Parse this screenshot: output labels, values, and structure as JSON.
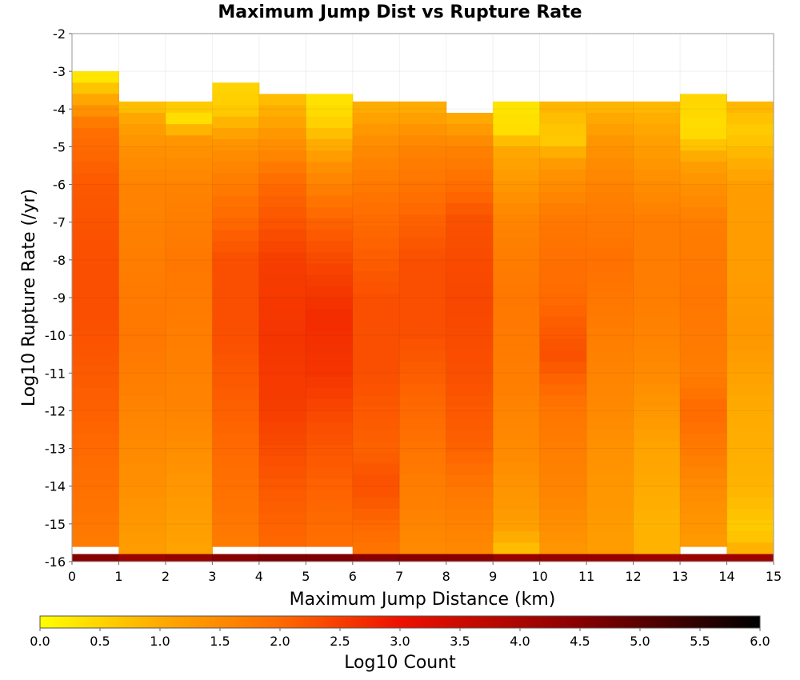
{
  "chart_data": {
    "type": "heatmap",
    "title": "Maximum Jump Dist vs Rupture Rate",
    "xlabel": "Maximum Jump Distance (km)",
    "ylabel": "Log10 Rupture Rate (/yr)",
    "xlim": [
      0,
      15
    ],
    "ylim": [
      -16,
      -2
    ],
    "x_ticks": [
      "0",
      "1",
      "2",
      "3",
      "4",
      "5",
      "6",
      "7",
      "8",
      "9",
      "10",
      "11",
      "12",
      "13",
      "14",
      "15"
    ],
    "y_ticks": [
      "-2",
      "-3",
      "-4",
      "-5",
      "-6",
      "-7",
      "-8",
      "-9",
      "-10",
      "-11",
      "-12",
      "-13",
      "-14",
      "-15",
      "-16"
    ],
    "x_bin_width": 1,
    "y_bin_width": 0.3,
    "colorbar": {
      "label": "Log10 Count",
      "range": [
        0,
        6
      ],
      "ticks": [
        "0.0",
        "0.5",
        "1.0",
        "1.5",
        "2.0",
        "2.5",
        "3.0",
        "3.5",
        "4.0",
        "4.5",
        "5.0",
        "5.5",
        "6.0"
      ],
      "stops": [
        {
          "value": 0.0,
          "color": "#ffff00"
        },
        {
          "value": 1.0,
          "color": "#ffaa00"
        },
        {
          "value": 2.0,
          "color": "#ff6a00"
        },
        {
          "value": 3.0,
          "color": "#ee1100"
        },
        {
          "value": 4.5,
          "color": "#880000"
        },
        {
          "value": 6.0,
          "color": "#000000"
        }
      ]
    },
    "columns": [
      {
        "x": 0.5,
        "top": -3.0,
        "bottom": -15.8,
        "profile": [
          [
            -3.0,
            0.1
          ],
          [
            -3.6,
            0.9
          ],
          [
            -4.5,
            1.9
          ],
          [
            -6,
            2.2
          ],
          [
            -8,
            2.3
          ],
          [
            -9.5,
            2.3
          ],
          [
            -12,
            2.1
          ],
          [
            -14,
            1.9
          ],
          [
            -15.8,
            1.7
          ]
        ],
        "edge": 4.5
      },
      {
        "x": 1.5,
        "top": -3.8,
        "bottom": -15.8,
        "profile": [
          [
            -3.8,
            0.6
          ],
          [
            -4.3,
            1.1
          ],
          [
            -5,
            1.4
          ],
          [
            -6,
            1.6
          ],
          [
            -8,
            1.7
          ],
          [
            -10,
            1.8
          ],
          [
            -12,
            1.6
          ],
          [
            -14,
            1.4
          ],
          [
            -15.8,
            1.2
          ]
        ],
        "edge": 4.2
      },
      {
        "x": 2.5,
        "top": -3.8,
        "bottom": -15.8,
        "profile": [
          [
            -3.8,
            0.8
          ],
          [
            -4.2,
            0.3
          ],
          [
            -4.8,
            1.3
          ],
          [
            -6,
            1.6
          ],
          [
            -8,
            1.8
          ],
          [
            -10,
            1.7
          ],
          [
            -12,
            1.6
          ],
          [
            -14,
            1.3
          ],
          [
            -15.8,
            1.1
          ]
        ],
        "edge": 4.3
      },
      {
        "x": 3.5,
        "top": -3.3,
        "bottom": -15.8,
        "profile": [
          [
            -3.3,
            0.5
          ],
          [
            -4.0,
            0.6
          ],
          [
            -5,
            1.4
          ],
          [
            -6.5,
            1.9
          ],
          [
            -8,
            2.3
          ],
          [
            -10,
            2.3
          ],
          [
            -12,
            2.1
          ],
          [
            -14,
            1.9
          ],
          [
            -15.8,
            1.7
          ]
        ],
        "edge": 4.5
      },
      {
        "x": 4.5,
        "top": -3.6,
        "bottom": -15.8,
        "profile": [
          [
            -3.6,
            0.7
          ],
          [
            -4.5,
            1.2
          ],
          [
            -6,
            2.0
          ],
          [
            -8,
            2.5
          ],
          [
            -10,
            2.6
          ],
          [
            -12,
            2.5
          ],
          [
            -14,
            2.2
          ],
          [
            -15.8,
            2.0
          ]
        ],
        "edge": 4.6
      },
      {
        "x": 5.5,
        "top": -3.6,
        "bottom": -15.8,
        "profile": [
          [
            -3.6,
            0.3
          ],
          [
            -4.3,
            0.5
          ],
          [
            -5.5,
            1.4
          ],
          [
            -7,
            2.1
          ],
          [
            -8.5,
            2.5
          ],
          [
            -9.5,
            2.7
          ],
          [
            -11,
            2.6
          ],
          [
            -12.5,
            2.3
          ],
          [
            -14,
            2.1
          ],
          [
            -15.8,
            1.9
          ]
        ],
        "edge": 4.6
      },
      {
        "x": 6.5,
        "top": -3.8,
        "bottom": -15.8,
        "profile": [
          [
            -3.8,
            0.9
          ],
          [
            -5,
            1.5
          ],
          [
            -7,
            2.0
          ],
          [
            -9,
            2.3
          ],
          [
            -11,
            2.3
          ],
          [
            -13,
            2.1
          ],
          [
            -14,
            2.3
          ],
          [
            -15.8,
            1.8
          ]
        ],
        "edge": 4.5
      },
      {
        "x": 7.5,
        "top": -3.8,
        "bottom": -15.8,
        "profile": [
          [
            -3.8,
            0.9
          ],
          [
            -5,
            1.6
          ],
          [
            -7,
            2.1
          ],
          [
            -8,
            2.3
          ],
          [
            -10,
            2.3
          ],
          [
            -12,
            2.0
          ],
          [
            -14,
            1.7
          ],
          [
            -15.8,
            1.5
          ]
        ],
        "edge": 4.5
      },
      {
        "x": 8.5,
        "top": -4.1,
        "bottom": -15.8,
        "profile": [
          [
            -4.1,
            0.9
          ],
          [
            -5,
            1.6
          ],
          [
            -7,
            2.3
          ],
          [
            -9,
            2.4
          ],
          [
            -11,
            2.3
          ],
          [
            -13,
            2.1
          ],
          [
            -14,
            1.8
          ],
          [
            -15.8,
            1.5
          ]
        ],
        "edge": 4.5
      },
      {
        "x": 9.5,
        "top": -3.8,
        "bottom": -15.8,
        "profile": [
          [
            -3.8,
            0.3
          ],
          [
            -4.6,
            0.4
          ],
          [
            -5,
            1.0
          ],
          [
            -7,
            1.6
          ],
          [
            -9,
            1.8
          ],
          [
            -11,
            1.7
          ],
          [
            -13,
            1.5
          ],
          [
            -15,
            1.2
          ],
          [
            -15.8,
            0.7
          ]
        ],
        "edge": 4.3
      },
      {
        "x": 10.5,
        "top": -3.8,
        "bottom": -15.8,
        "profile": [
          [
            -3.8,
            0.9
          ],
          [
            -4.8,
            0.6
          ],
          [
            -5.5,
            1.3
          ],
          [
            -7,
            1.8
          ],
          [
            -9,
            2.0
          ],
          [
            -10.5,
            2.3
          ],
          [
            -12,
            1.8
          ],
          [
            -14,
            1.6
          ],
          [
            -15.8,
            1.3
          ]
        ],
        "edge": 4.3
      },
      {
        "x": 11.5,
        "top": -3.8,
        "bottom": -15.8,
        "profile": [
          [
            -3.8,
            0.8
          ],
          [
            -4.8,
            1.3
          ],
          [
            -6,
            1.6
          ],
          [
            -8,
            1.9
          ],
          [
            -10,
            1.7
          ],
          [
            -12,
            1.5
          ],
          [
            -14,
            1.3
          ],
          [
            -15.8,
            1.2
          ]
        ],
        "edge": 4.3
      },
      {
        "x": 12.5,
        "top": -3.8,
        "bottom": -15.8,
        "profile": [
          [
            -3.8,
            0.8
          ],
          [
            -5,
            1.2
          ],
          [
            -7,
            1.7
          ],
          [
            -9,
            1.7
          ],
          [
            -11,
            1.5
          ],
          [
            -13,
            1.1
          ],
          [
            -15,
            0.9
          ],
          [
            -15.8,
            0.9
          ]
        ],
        "edge": 4.2
      },
      {
        "x": 13.5,
        "top": -3.6,
        "bottom": -15.8,
        "profile": [
          [
            -3.6,
            0.5
          ],
          [
            -4.6,
            0.4
          ],
          [
            -5.5,
            1.2
          ],
          [
            -7,
            1.7
          ],
          [
            -9,
            1.8
          ],
          [
            -11,
            1.7
          ],
          [
            -12,
            2.0
          ],
          [
            -14,
            1.5
          ],
          [
            -15.8,
            1.2
          ]
        ],
        "edge": 4.2
      },
      {
        "x": 14.5,
        "top": -3.8,
        "bottom": -15.8,
        "profile": [
          [
            -3.8,
            0.9
          ],
          [
            -4.6,
            0.6
          ],
          [
            -6,
            1.2
          ],
          [
            -8,
            1.2
          ],
          [
            -10,
            1.3
          ],
          [
            -12,
            1.0
          ],
          [
            -14,
            0.9
          ],
          [
            -15.2,
            0.6
          ],
          [
            -15.8,
            1.0
          ]
        ],
        "edge": 4.2
      }
    ]
  }
}
